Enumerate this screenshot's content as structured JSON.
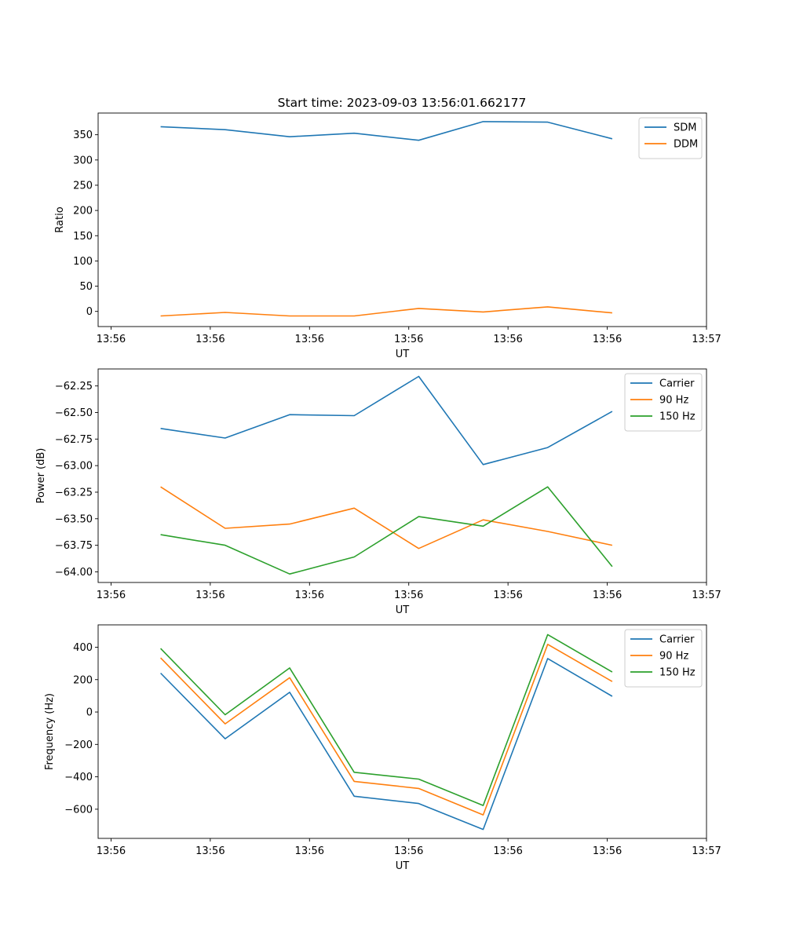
{
  "figure_title": "Start time: 2023-09-03 13:56:01.662177",
  "colors": {
    "c0": "#1f77b4",
    "c1": "#ff7f0e",
    "c2": "#2ca02c"
  },
  "chart_data": [
    {
      "type": "line",
      "title": "Start time: 2023-09-03 13:56:01.662177",
      "xlabel": "UT",
      "ylabel": "Ratio",
      "x_tick_labels": [
        "13:56",
        "13:56",
        "13:56",
        "13:56",
        "13:56",
        "13:56",
        "13:57"
      ],
      "x": [
        0.5,
        1.15,
        1.8,
        2.45,
        3.1,
        3.75,
        4.4,
        5.05
      ],
      "xlim": [
        -0.13,
        6.0
      ],
      "ylim": [
        -30,
        393
      ],
      "y_ticks": [
        0,
        50,
        100,
        150,
        200,
        250,
        300,
        350
      ],
      "y_tick_labels": [
        "0",
        "50",
        "100",
        "150",
        "200",
        "250",
        "300",
        "350"
      ],
      "legend_position": "top-right",
      "series": [
        {
          "name": "SDM",
          "color": "#1f77b4",
          "values": [
            366,
            360,
            346,
            353,
            339,
            376,
            375,
            342
          ]
        },
        {
          "name": "DDM",
          "color": "#ff7f0e",
          "values": [
            -9,
            -2,
            -9,
            -9,
            6,
            -1,
            9,
            -3
          ]
        }
      ]
    },
    {
      "type": "line",
      "title": "",
      "xlabel": "UT",
      "ylabel": "Power (dB)",
      "x_tick_labels": [
        "13:56",
        "13:56",
        "13:56",
        "13:56",
        "13:56",
        "13:56",
        "13:57"
      ],
      "x": [
        0.5,
        1.15,
        1.8,
        2.45,
        3.1,
        3.75,
        4.4,
        5.05
      ],
      "xlim": [
        -0.13,
        6.0
      ],
      "ylim": [
        -64.1,
        -62.09
      ],
      "y_ticks": [
        -64.0,
        -63.75,
        -63.5,
        -63.25,
        -63.0,
        -62.75,
        -62.5,
        -62.25
      ],
      "y_tick_labels": [
        "−64.00",
        "−63.75",
        "−63.50",
        "−63.25",
        "−63.00",
        "−62.75",
        "−62.50",
        "−62.25"
      ],
      "legend_position": "top-right",
      "series": [
        {
          "name": "Carrier",
          "color": "#1f77b4",
          "values": [
            -62.65,
            -62.74,
            -62.52,
            -62.53,
            -62.16,
            -62.99,
            -62.83,
            -62.49
          ]
        },
        {
          "name": "90 Hz",
          "color": "#ff7f0e",
          "values": [
            -63.2,
            -63.59,
            -63.55,
            -63.4,
            -63.78,
            -63.51,
            -63.62,
            -63.75
          ]
        },
        {
          "name": "150 Hz",
          "color": "#2ca02c",
          "values": [
            -63.65,
            -63.75,
            -64.02,
            -63.86,
            -63.48,
            -63.57,
            -63.2,
            -63.95
          ]
        }
      ]
    },
    {
      "type": "line",
      "title": "",
      "xlabel": "UT",
      "ylabel": "Frequency (Hz)",
      "x_tick_labels": [
        "13:56",
        "13:56",
        "13:56",
        "13:56",
        "13:56",
        "13:56",
        "13:57"
      ],
      "x": [
        0.5,
        1.15,
        1.8,
        2.45,
        3.1,
        3.75,
        4.4,
        5.05
      ],
      "xlim": [
        -0.13,
        6.0
      ],
      "ylim": [
        -780,
        538
      ],
      "y_ticks": [
        -600,
        -400,
        -200,
        0,
        200,
        400
      ],
      "y_tick_labels": [
        "−600",
        "−400",
        "−200",
        "0",
        "200",
        "400"
      ],
      "legend_position": "top-right",
      "series": [
        {
          "name": "Carrier",
          "color": "#1f77b4",
          "values": [
            240,
            -165,
            122,
            -520,
            -565,
            -725,
            330,
            97
          ]
        },
        {
          "name": "90 Hz",
          "color": "#ff7f0e",
          "values": [
            334,
            -73,
            212,
            -428,
            -472,
            -635,
            418,
            188
          ]
        },
        {
          "name": "150 Hz",
          "color": "#2ca02c",
          "values": [
            392,
            -17,
            272,
            -372,
            -414,
            -577,
            478,
            247
          ]
        }
      ]
    }
  ]
}
